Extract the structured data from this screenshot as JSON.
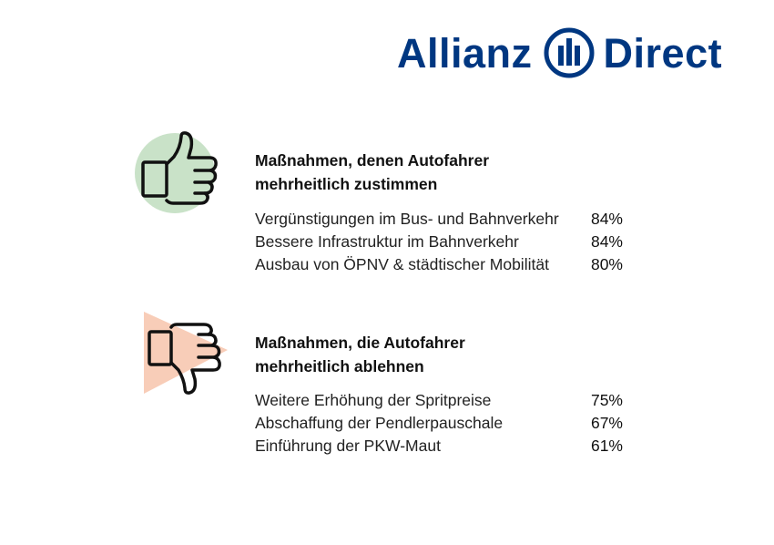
{
  "brand": {
    "name_left": "Allianz",
    "name_right": "Direct",
    "color": "#003781"
  },
  "approve": {
    "icon": "thumbs-up-icon",
    "icon_bg": "#c9e2c8",
    "title_line1": "Maßnahmen, denen Autofahrer",
    "title_line2": "mehrheitlich zustimmen",
    "items": [
      {
        "label": "Vergünstigungen im Bus- und Bahnverkehr",
        "value": "84%"
      },
      {
        "label": "Bessere Infrastruktur im Bahnverkehr",
        "value": "84%"
      },
      {
        "label": "Ausbau von ÖPNV & städtischer Mobilität",
        "value": "80%"
      }
    ]
  },
  "reject": {
    "icon": "thumbs-down-icon",
    "icon_bg": "#f8cdb8",
    "title_line1": "Maßnahmen, die Autofahrer",
    "title_line2": "mehrheitlich ablehnen",
    "items": [
      {
        "label": "Weitere Erhöhung der Spritpreise",
        "value": "75%"
      },
      {
        "label": "Abschaffung der Pendlerpauschale",
        "value": "67%"
      },
      {
        "label": "Einführung der PKW-Maut",
        "value": "61%"
      }
    ]
  }
}
